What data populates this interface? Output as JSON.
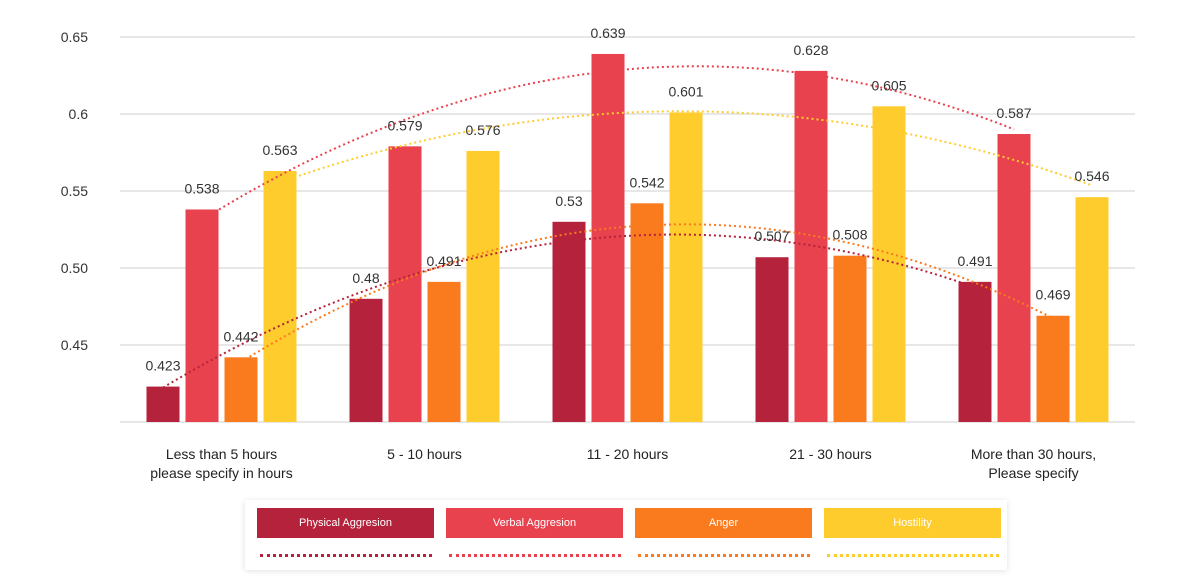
{
  "chart_data": {
    "type": "bar",
    "title": "",
    "xlabel": "",
    "ylabel": "",
    "ylim": [
      0.4,
      0.65
    ],
    "yticks": [
      0.45,
      0.5,
      0.55,
      0.6,
      0.65
    ],
    "ytick_labels": [
      "0.45",
      "0.50",
      "0.55",
      "0.6",
      "0.65"
    ],
    "categories": [
      [
        "Less than 5 hours",
        "please specify in hours"
      ],
      [
        "5 - 10 hours"
      ],
      [
        "11 - 20 hours"
      ],
      [
        "21 - 30 hours"
      ],
      [
        "More than 30 hours,",
        "Please specify"
      ]
    ],
    "grid": true,
    "trendlines": "polynomial (dotted), one per series",
    "legend_position": "bottom",
    "series": [
      {
        "name": "Physical Aggresion",
        "color": "#B5223B",
        "values": [
          0.423,
          0.48,
          0.53,
          0.507,
          0.491
        ]
      },
      {
        "name": "Verbal Aggresion",
        "color": "#E8424E",
        "values": [
          0.538,
          0.579,
          0.639,
          0.628,
          0.587
        ]
      },
      {
        "name": "Anger",
        "color": "#FA7A1E",
        "values": [
          0.442,
          0.491,
          0.542,
          0.508,
          0.469
        ]
      },
      {
        "name": "Hostility",
        "color": "#FFCC2E",
        "values": [
          0.563,
          0.576,
          0.601,
          0.605,
          0.546
        ]
      }
    ]
  }
}
